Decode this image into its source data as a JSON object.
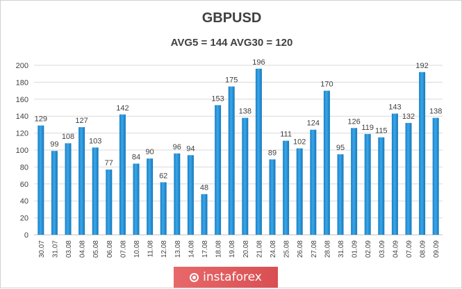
{
  "chart_data": {
    "type": "bar",
    "title": "GBPUSD",
    "subtitle": "AVG5 = 144 AVG30 = 120",
    "xlabel": "",
    "ylabel": "",
    "ylim": [
      0,
      200
    ],
    "yticks": [
      0,
      20,
      40,
      60,
      80,
      100,
      120,
      140,
      160,
      180,
      200
    ],
    "grid": true,
    "categories": [
      "30.07",
      "31.07",
      "03.08",
      "04.08",
      "05.08",
      "06.08",
      "07.08",
      "10.08",
      "11.08",
      "12.08",
      "13.08",
      "14.08",
      "17.08",
      "18.08",
      "19.08",
      "20.08",
      "21.08",
      "24.08",
      "25.08",
      "26.08",
      "27.08",
      "28.08",
      "31.08",
      "01.09",
      "02.09",
      "03.09",
      "04.09",
      "07.09",
      "08.09",
      "09.09"
    ],
    "values": [
      129,
      99,
      108,
      127,
      103,
      77,
      142,
      84,
      90,
      62,
      96,
      94,
      48,
      153,
      175,
      138,
      196,
      89,
      111,
      102,
      124,
      170,
      95,
      126,
      119,
      115,
      143,
      132,
      192,
      138
    ],
    "bar_color": "#1f8fd6"
  },
  "brand": {
    "name": "instaforex",
    "icon": "instaforex-logo-icon"
  }
}
